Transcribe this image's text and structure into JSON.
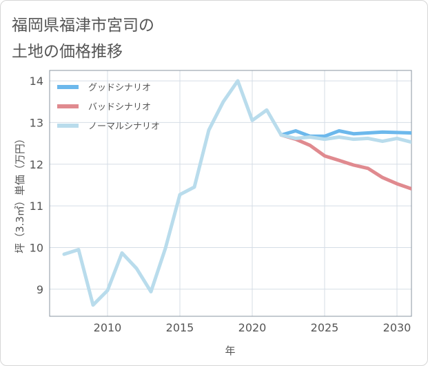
{
  "title_lines": [
    "福岡県福津市宮司の",
    "土地の価格推移"
  ],
  "chart_data": {
    "type": "line",
    "xlabel": "年",
    "ylabel": "坪（3.3㎡）単価（万円）",
    "xlim": [
      2006,
      2031
    ],
    "ylim": [
      8.35,
      14.25
    ],
    "xticks": [
      2010,
      2015,
      2020,
      2025,
      2030
    ],
    "yticks": [
      9,
      10,
      11,
      12,
      13,
      14
    ],
    "grid": true,
    "legend_position": "top-left",
    "series": [
      {
        "name": "グッドシナリオ",
        "color": "#6cb8ec",
        "x": [
          2022,
          2023,
          2024,
          2025,
          2026,
          2027,
          2028,
          2029,
          2030,
          2031
        ],
        "y": [
          12.7,
          12.8,
          12.67,
          12.67,
          12.8,
          12.73,
          12.75,
          12.77,
          12.76,
          12.75
        ]
      },
      {
        "name": "バッドシナリオ",
        "color": "#e08a8f",
        "x": [
          2022,
          2023,
          2024,
          2025,
          2026,
          2027,
          2028,
          2029,
          2030,
          2031
        ],
        "y": [
          12.7,
          12.6,
          12.45,
          12.2,
          12.09,
          11.98,
          11.9,
          11.68,
          11.53,
          11.41
        ]
      },
      {
        "name": "ノーマルシナリオ",
        "color": "#b9dcec",
        "x": [
          2007,
          2008,
          2009,
          2010,
          2011,
          2012,
          2013,
          2014,
          2015,
          2016,
          2017,
          2018,
          2019,
          2020,
          2021,
          2022,
          2023,
          2024,
          2025,
          2026,
          2027,
          2028,
          2029,
          2030,
          2031
        ],
        "y": [
          9.84,
          9.95,
          8.62,
          8.97,
          9.87,
          9.5,
          8.94,
          9.98,
          11.27,
          11.45,
          12.82,
          13.5,
          14.0,
          13.05,
          13.3,
          12.7,
          12.62,
          12.65,
          12.6,
          12.65,
          12.6,
          12.62,
          12.55,
          12.62,
          12.53
        ]
      }
    ]
  }
}
